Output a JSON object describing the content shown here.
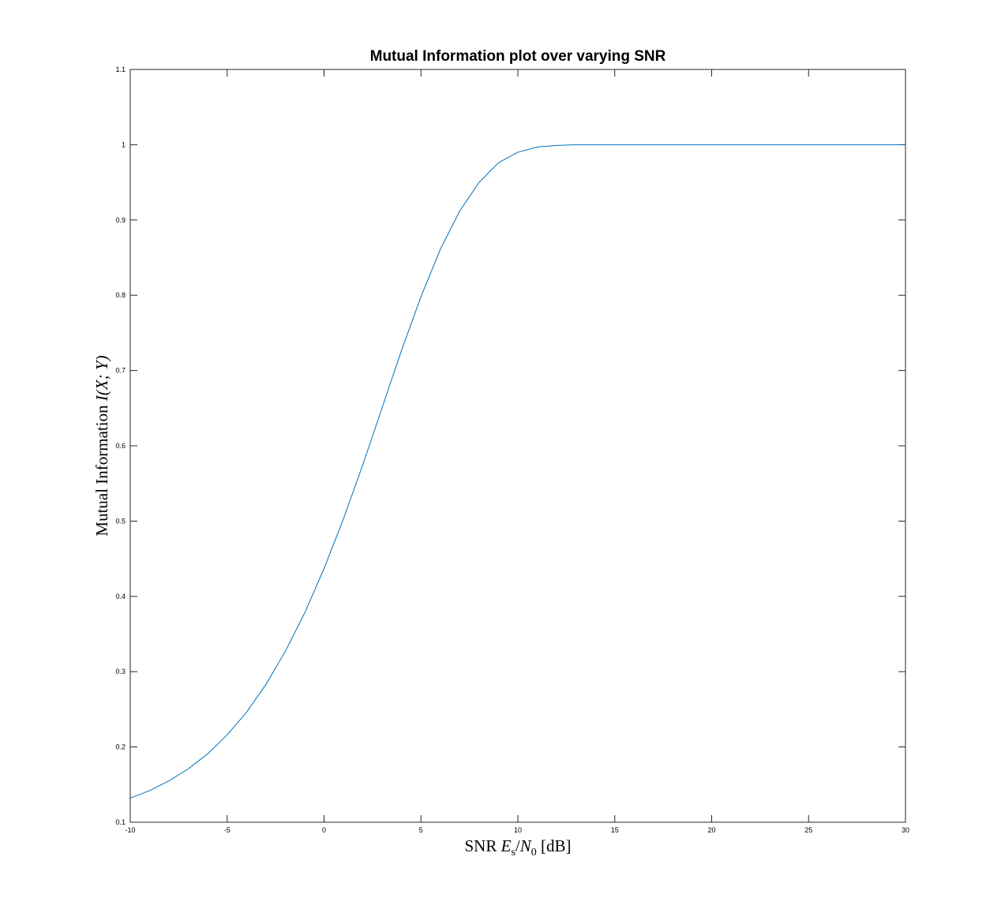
{
  "chart_data": {
    "type": "line",
    "title": "Mutual Information plot over varying SNR",
    "xlabel": {
      "prefix": "SNR ",
      "var": "E",
      "sub": "s",
      "slash": "/",
      "var2": "N",
      "sub2": "0",
      "suffix": " [dB]"
    },
    "ylabel": {
      "prefix": "Mutual Information ",
      "math": "I(X; Y)"
    },
    "xlim": [
      -10,
      30
    ],
    "ylim": [
      0.1,
      1.1
    ],
    "xticks": [
      -10,
      -5,
      0,
      5,
      10,
      15,
      20,
      25,
      30
    ],
    "xtick_labels": [
      "-10",
      "-5",
      "0",
      "5",
      "10",
      "15",
      "20",
      "25",
      "30"
    ],
    "yticks": [
      0.1,
      0.2,
      0.3,
      0.4,
      0.5,
      0.6,
      0.7,
      0.8,
      0.9,
      1.0,
      1.1
    ],
    "ytick_labels": [
      "0.1",
      "0.2",
      "0.3",
      "0.4",
      "0.5",
      "0.6",
      "0.7",
      "0.8",
      "0.9",
      "1",
      "1.1"
    ],
    "grid": false,
    "line_color": "#0072bd",
    "series": [
      {
        "x": [
          -10,
          -9,
          -8,
          -7,
          -6,
          -5,
          -4,
          -3,
          -2,
          -1,
          0,
          1,
          2,
          3,
          4,
          5,
          6,
          7,
          8,
          9,
          10,
          11,
          12,
          13,
          14,
          15,
          16,
          17,
          18,
          19,
          20,
          21,
          22,
          23,
          24,
          25,
          26,
          27,
          28,
          29,
          30
        ],
        "y": [
          0.132,
          0.142,
          0.155,
          0.171,
          0.191,
          0.216,
          0.246,
          0.283,
          0.327,
          0.378,
          0.437,
          0.503,
          0.575,
          0.651,
          0.727,
          0.798,
          0.861,
          0.912,
          0.95,
          0.976,
          0.99,
          0.997,
          0.999,
          1.0,
          1.0,
          1.0,
          1.0,
          1.0,
          1.0,
          1.0,
          1.0,
          1.0,
          1.0,
          1.0,
          1.0,
          1.0,
          1.0,
          1.0,
          1.0,
          1.0,
          1.0
        ]
      }
    ]
  }
}
